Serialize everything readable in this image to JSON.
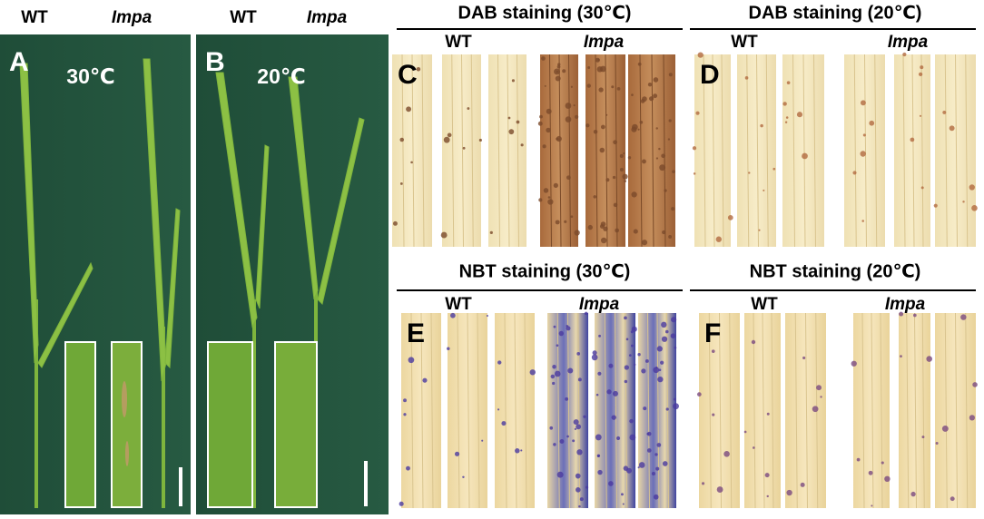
{
  "panels": [
    {
      "label": "A",
      "temperature": "30℃",
      "genotypes": [
        "WT",
        "Impa"
      ]
    },
    {
      "label": "B",
      "temperature": "20℃",
      "genotypes": [
        "WT",
        "Impa"
      ]
    },
    {
      "label": "C",
      "title": "DAB staining (30℃)",
      "genotypes": [
        "WT",
        "Impa"
      ]
    },
    {
      "label": "D",
      "title": "DAB staining (20℃)",
      "genotypes": [
        "WT",
        "Impa"
      ]
    },
    {
      "label": "E",
      "title": "NBT staining (30℃)",
      "genotypes": [
        "WT",
        "Impa"
      ]
    },
    {
      "label": "F",
      "title": "NBT staining (20℃)",
      "genotypes": [
        "WT",
        "Impa"
      ]
    }
  ]
}
